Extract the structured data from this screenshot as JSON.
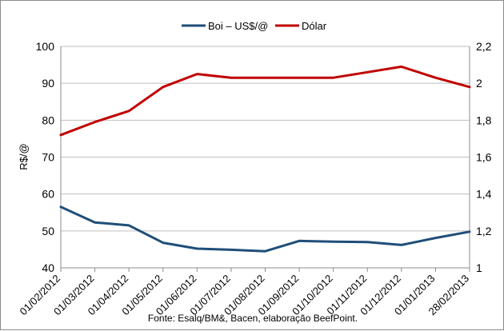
{
  "chart_data": {
    "type": "line",
    "title": "",
    "source": "Fonte: Esalq/BM&, Bacen, elaboração BeefPoint.",
    "xlabel": "",
    "ylabel": "R$/@",
    "y2label": "",
    "legend_position": "top",
    "grid": true,
    "categories": [
      "01/02/2012",
      "01/03/2012",
      "01/04/2012",
      "01/05/2012",
      "01/06/2012",
      "01/07/2012",
      "01/08/2012",
      "01/09/2012",
      "01/10/2012",
      "01/11/2012",
      "01/12/2012",
      "01/01/2013",
      "28/02/2013"
    ],
    "ylim": [
      40,
      100
    ],
    "yticks": [
      "40",
      "50",
      "60",
      "70",
      "80",
      "90",
      "100"
    ],
    "y2lim": [
      1,
      2.2
    ],
    "y2ticks": [
      "1",
      "1,2",
      "1,4",
      "1,6",
      "1,8",
      "2",
      "2,2"
    ],
    "series": [
      {
        "name": "Boi – US$/@",
        "axis": "left",
        "color": "#1f4e79",
        "values": [
          56.5,
          52.3,
          51.5,
          46.8,
          45.2,
          44.9,
          44.5,
          47.3,
          47.1,
          47.0,
          46.2,
          48.1,
          49.8
        ]
      },
      {
        "name": "Dólar",
        "axis": "right",
        "color": "#c00000",
        "values": [
          1.72,
          1.79,
          1.85,
          1.98,
          2.05,
          2.03,
          2.03,
          2.03,
          2.03,
          2.06,
          2.09,
          2.03,
          1.98
        ]
      }
    ]
  }
}
